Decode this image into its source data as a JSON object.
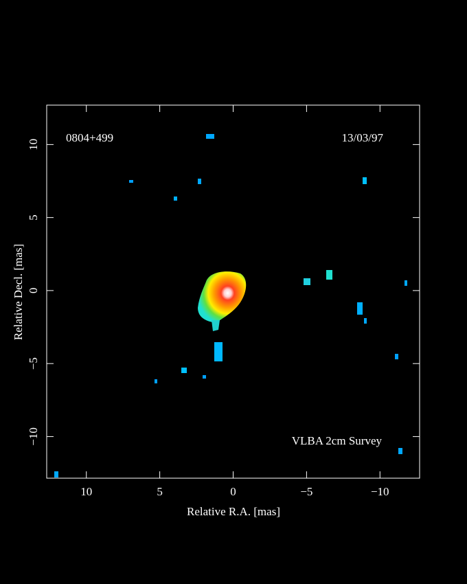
{
  "chart_data": {
    "type": "image",
    "source": "0804+499",
    "date": "13/03/97",
    "survey": "VLBA 2cm Survey",
    "x_label": "Relative R.A. [mas]",
    "y_label": "Relative Decl. [mas]",
    "xlim": [
      12.7,
      -12.7
    ],
    "ylim": [
      -12.85,
      12.7
    ],
    "xticks": [
      10,
      5,
      0,
      {
        "value": -5,
        "label": "−5"
      },
      {
        "value": -10,
        "label": "−10"
      }
    ],
    "yticks": [
      {
        "value": -10,
        "label": "−10"
      },
      {
        "value": -5,
        "label": "−5"
      },
      0,
      5,
      10
    ]
  }
}
